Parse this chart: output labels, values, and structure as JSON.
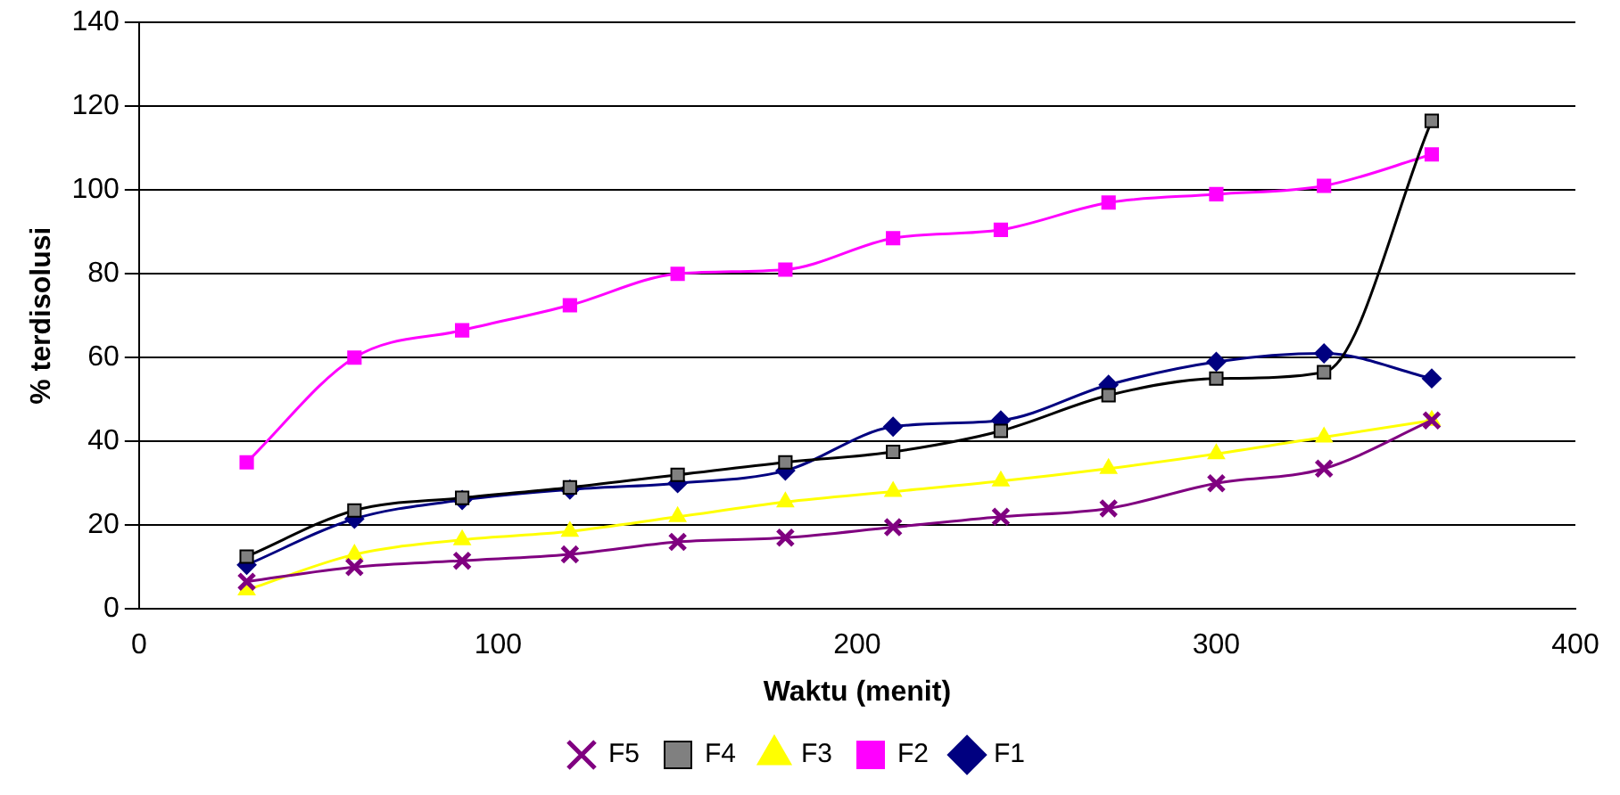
{
  "chart_data": {
    "type": "line",
    "xlabel": "Waktu (menit)",
    "ylabel": "% terdisolusi",
    "x": [
      30,
      60,
      90,
      120,
      150,
      180,
      210,
      240,
      270,
      300,
      330,
      360
    ],
    "series": [
      {
        "name": "F1",
        "color": "#000080",
        "marker": "diamond",
        "values": [
          10.5,
          21.5,
          26,
          28.5,
          30,
          33,
          43.5,
          45,
          53.5,
          59,
          61,
          55
        ]
      },
      {
        "name": "F2",
        "color": "#ff00ff",
        "marker": "square",
        "values": [
          35,
          60,
          66.5,
          72.5,
          80,
          81,
          88.5,
          90.5,
          97,
          99,
          101,
          108.5
        ]
      },
      {
        "name": "F3",
        "color": "#ffff00",
        "marker": "triangle",
        "values": [
          4.5,
          13,
          16.5,
          18.5,
          22,
          25.5,
          28,
          30.5,
          33.5,
          37,
          41,
          45
        ]
      },
      {
        "name": "F4",
        "color": "#000000",
        "marker": "square",
        "values": [
          12.5,
          23.5,
          26.5,
          29,
          32,
          35,
          37.5,
          42.5,
          51,
          55,
          56.5,
          116.5
        ]
      },
      {
        "name": "F5",
        "color": "#800080",
        "marker": "cross",
        "values": [
          6.5,
          10,
          11.5,
          13,
          16,
          17,
          19.5,
          22,
          24,
          30,
          33.5,
          45
        ]
      }
    ],
    "xlim": [
      0,
      400
    ],
    "xticks": [
      0,
      100,
      200,
      300,
      400
    ],
    "ylim": [
      0,
      140
    ],
    "yticks": [
      0,
      20,
      40,
      60,
      80,
      100,
      120,
      140
    ],
    "grid": "y",
    "legend": "bottom"
  }
}
